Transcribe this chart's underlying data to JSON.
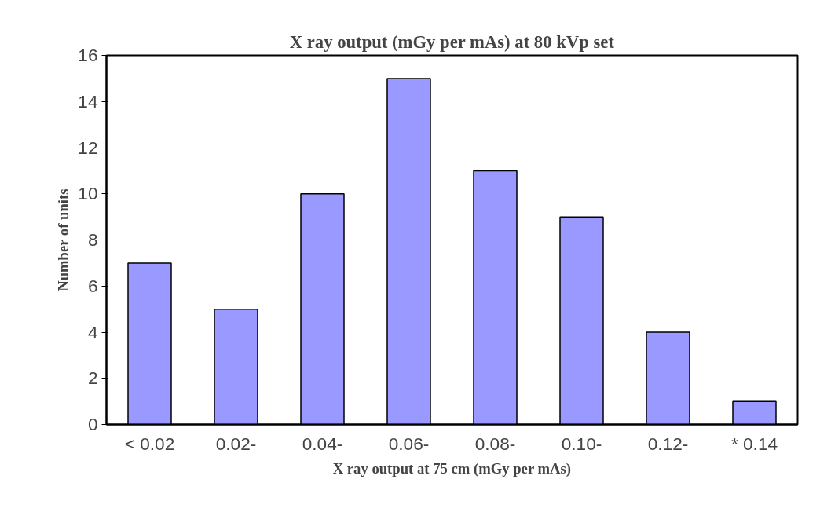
{
  "chart_data": {
    "type": "bar",
    "title": "X ray output (mGy per mAs) at 80 kVp set",
    "xlabel": "X ray output at 75 cm (mGy per mAs)",
    "ylabel": "Number of units",
    "categories": [
      "< 0.02",
      "0.02-",
      "0.04-",
      "0.06-",
      "0.08-",
      "0.10-",
      "0.12-",
      "* 0.14"
    ],
    "values": [
      7,
      5,
      10,
      15,
      11,
      9,
      4,
      1
    ],
    "color": "#9999ff",
    "ylim": [
      0,
      16
    ],
    "yticks": [
      0,
      2,
      4,
      6,
      8,
      10,
      12,
      14,
      16
    ],
    "grid": false
  }
}
